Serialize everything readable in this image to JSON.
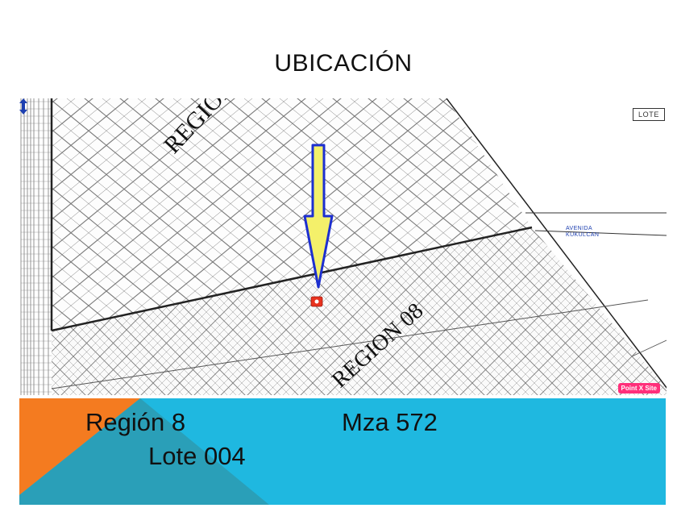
{
  "page": {
    "title": "UBICACIÓN"
  },
  "map": {
    "region_upper_label": "REGION",
    "region_lower_label": "REGION 08",
    "legend_label": "LOTE",
    "avenue_label_line1": "AVENIDA",
    "avenue_label_line2": "KUKULCAN",
    "watermark": "Point X Site",
    "colors": {
      "arrow_fill": "#f4f06a",
      "arrow_stroke": "#1d2fd0",
      "marker": "#e8321e",
      "grid_line": "#7a7a7a",
      "boundary": "#222222"
    }
  },
  "banner": {
    "region": "Región 8",
    "manzana": "Mza 572",
    "lote": "Lote 004",
    "colors": {
      "background": "#1fb8e0",
      "orange": "#f47b20",
      "teal": "#2a9fb8"
    }
  }
}
